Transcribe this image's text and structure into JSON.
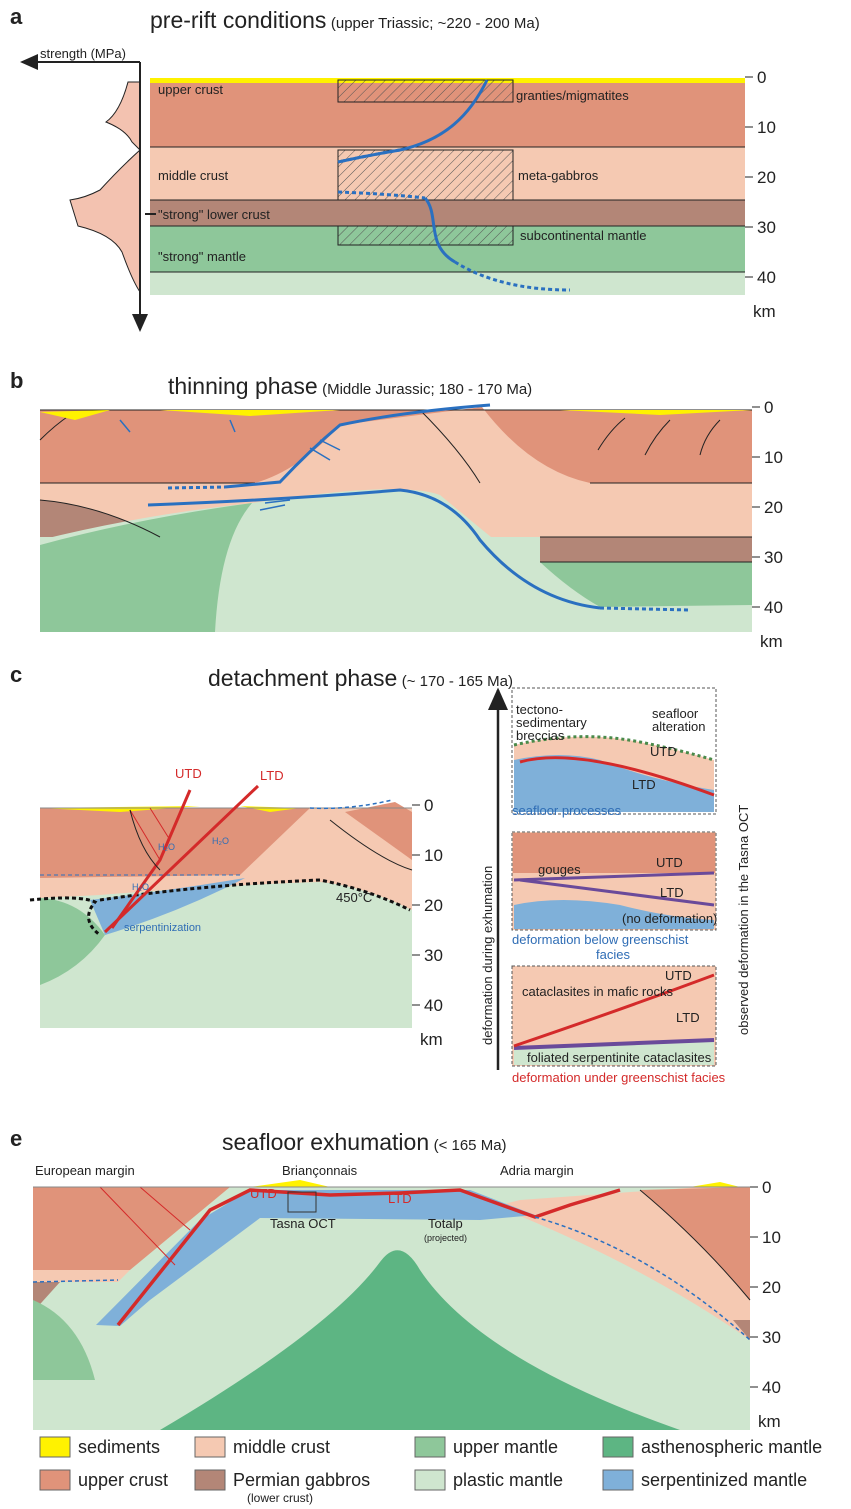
{
  "panel_a": {
    "label": "a",
    "title": "pre-rift conditions",
    "subtitle": "(upper Triassic; ~220 - 200 Ma)",
    "axis_label": "strength (MPa)",
    "depth_ticks": [
      0,
      10,
      20,
      30,
      40
    ],
    "depth_unit": "km",
    "layers": [
      "upper crust",
      "middle crust",
      "\"strong\" lower crust",
      "\"strong\" mantle"
    ],
    "annotations": [
      "granties/migmatites",
      "meta-gabbros",
      "subcontinental mantle"
    ]
  },
  "panel_b": {
    "label": "b",
    "title": "thinning phase",
    "subtitle": "(Middle Jurassic; 180 - 170 Ma)",
    "depth_ticks": [
      0,
      10,
      20,
      30,
      40
    ],
    "depth_unit": "km"
  },
  "panel_c": {
    "label": "c",
    "title": "detachment phase",
    "subtitle": "(~ 170 - 165 Ma)",
    "depth_ticks": [
      0,
      10,
      20,
      30,
      40
    ],
    "depth_unit": "km",
    "annotations": [
      "UTD",
      "LTD",
      "H₂O",
      "H₂O",
      "H₂O",
      "serpentinization",
      "450°C"
    ],
    "left_axis_label": "deformation during exhumation",
    "right_axis_label": "observed deformation in the Tasna OCT",
    "insets": [
      {
        "labels": [
          "tectono-",
          "sedimentary",
          "breccias",
          "seafloor",
          "alteration",
          "UTD",
          "LTD"
        ],
        "caption": [
          "seafloor processes"
        ]
      },
      {
        "labels": [
          "gouges",
          "UTD",
          "LTD",
          "(no deformation)"
        ],
        "caption": [
          "deformation  below greenschist",
          "facies"
        ]
      },
      {
        "labels": [
          "cataclasites in mafic rocks",
          "UTD",
          "LTD",
          "foliated serpentinite cataclasites"
        ],
        "caption": [
          "deformation under greenschist facies"
        ]
      }
    ]
  },
  "panel_e": {
    "label": "e",
    "title": "seafloor exhumation",
    "subtitle": "(< 165 Ma)",
    "depth_ticks": [
      0,
      10,
      20,
      30,
      40
    ],
    "depth_unit": "km",
    "annotations": [
      "European margin",
      "Briançonnais",
      "Adria margin",
      "UTD",
      "LTD",
      "Tasna OCT",
      "Totalp",
      "(projected)"
    ]
  },
  "legend": [
    {
      "label": "sediments",
      "color": "#fff200"
    },
    {
      "label": "middle crust",
      "color": "#f5c9b2"
    },
    {
      "label": "upper mantle",
      "color": "#8ec79a"
    },
    {
      "label": "asthenospheric mantle",
      "color": "#5db583"
    },
    {
      "label": "upper crust",
      "color": "#e0937a"
    },
    {
      "label": "Permian gabbros",
      "note": "(lower crust)",
      "color": "#b38677"
    },
    {
      "label": "plastic mantle",
      "color": "#cfe6cf"
    },
    {
      "label": "serpentinized mantle",
      "color": "#7fb0d9"
    }
  ]
}
